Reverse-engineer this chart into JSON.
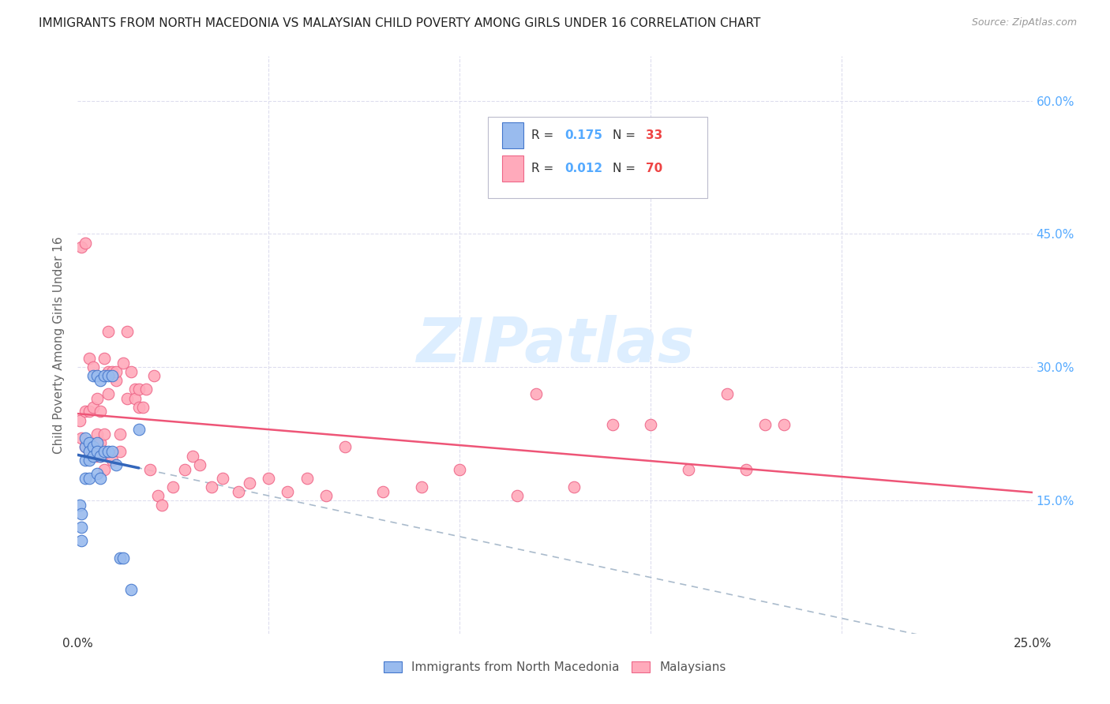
{
  "title": "IMMIGRANTS FROM NORTH MACEDONIA VS MALAYSIAN CHILD POVERTY AMONG GIRLS UNDER 16 CORRELATION CHART",
  "source": "Source: ZipAtlas.com",
  "ylabel": "Child Poverty Among Girls Under 16",
  "ytick_vals": [
    0.15,
    0.3,
    0.45,
    0.6
  ],
  "ytick_labels": [
    "15.0%",
    "30.0%",
    "45.0%",
    "60.0%"
  ],
  "xlim": [
    0.0,
    0.25
  ],
  "ylim": [
    0.0,
    0.65
  ],
  "blue_fill": "#99BBEE",
  "blue_edge": "#4477CC",
  "pink_fill": "#FFAABB",
  "pink_edge": "#EE6688",
  "blue_line_color": "#3366BB",
  "pink_line_color": "#EE5577",
  "dashed_color": "#AABBCC",
  "grid_color": "#DDDDEE",
  "watermark_text": "ZIPatlas",
  "watermark_color": "#DDEEFF",
  "legend_r1": "0.175",
  "legend_n1": "33",
  "legend_r2": "0.012",
  "legend_n2": "70",
  "scatter_blue_x": [
    0.0005,
    0.001,
    0.001,
    0.001,
    0.002,
    0.002,
    0.002,
    0.002,
    0.003,
    0.003,
    0.003,
    0.003,
    0.004,
    0.004,
    0.004,
    0.005,
    0.005,
    0.005,
    0.005,
    0.006,
    0.006,
    0.006,
    0.007,
    0.007,
    0.008,
    0.008,
    0.009,
    0.009,
    0.01,
    0.011,
    0.012,
    0.014,
    0.016
  ],
  "scatter_blue_y": [
    0.145,
    0.135,
    0.12,
    0.105,
    0.21,
    0.22,
    0.195,
    0.175,
    0.215,
    0.205,
    0.195,
    0.175,
    0.29,
    0.21,
    0.2,
    0.29,
    0.215,
    0.205,
    0.18,
    0.285,
    0.2,
    0.175,
    0.29,
    0.205,
    0.29,
    0.205,
    0.29,
    0.205,
    0.19,
    0.085,
    0.085,
    0.05,
    0.23
  ],
  "scatter_pink_x": [
    0.0005,
    0.001,
    0.001,
    0.002,
    0.002,
    0.002,
    0.003,
    0.003,
    0.003,
    0.004,
    0.004,
    0.004,
    0.005,
    0.005,
    0.005,
    0.006,
    0.006,
    0.006,
    0.007,
    0.007,
    0.007,
    0.008,
    0.008,
    0.008,
    0.009,
    0.009,
    0.01,
    0.01,
    0.011,
    0.011,
    0.012,
    0.013,
    0.013,
    0.014,
    0.015,
    0.015,
    0.016,
    0.016,
    0.017,
    0.018,
    0.019,
    0.02,
    0.021,
    0.022,
    0.025,
    0.028,
    0.03,
    0.032,
    0.035,
    0.038,
    0.042,
    0.045,
    0.05,
    0.055,
    0.06,
    0.065,
    0.07,
    0.08,
    0.09,
    0.1,
    0.115,
    0.12,
    0.13,
    0.14,
    0.15,
    0.16,
    0.17,
    0.175,
    0.18,
    0.185
  ],
  "scatter_pink_y": [
    0.24,
    0.22,
    0.435,
    0.21,
    0.25,
    0.44,
    0.205,
    0.25,
    0.31,
    0.21,
    0.255,
    0.3,
    0.2,
    0.225,
    0.265,
    0.2,
    0.215,
    0.25,
    0.185,
    0.225,
    0.31,
    0.27,
    0.295,
    0.34,
    0.195,
    0.295,
    0.285,
    0.295,
    0.205,
    0.225,
    0.305,
    0.34,
    0.265,
    0.295,
    0.275,
    0.265,
    0.255,
    0.275,
    0.255,
    0.275,
    0.185,
    0.29,
    0.155,
    0.145,
    0.165,
    0.185,
    0.2,
    0.19,
    0.165,
    0.175,
    0.16,
    0.17,
    0.175,
    0.16,
    0.175,
    0.155,
    0.21,
    0.16,
    0.165,
    0.185,
    0.155,
    0.27,
    0.165,
    0.235,
    0.235,
    0.185,
    0.27,
    0.185,
    0.235,
    0.235
  ]
}
